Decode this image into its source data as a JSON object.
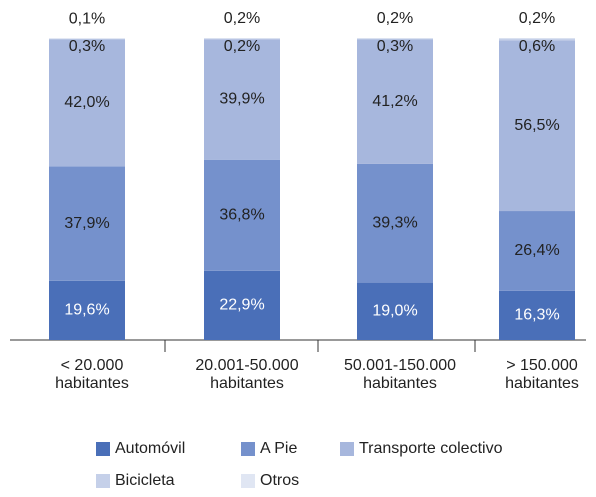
{
  "chart_data": {
    "type": "stacked-bar",
    "categories": [
      "< 20.000 habitantes",
      "20.001-50.000 habitantes",
      "50.001-150.000 habitantes",
      "> 150.000 habitantes"
    ],
    "series": [
      {
        "name": "Automóvil",
        "color": "#4a6fb8",
        "values": [
          19.6,
          22.9,
          19.0,
          16.3
        ],
        "value_labels": [
          "19,6%",
          "22,9%",
          "19,0%",
          "16,3%"
        ]
      },
      {
        "name": "A Pie",
        "color": "#7591cc",
        "values": [
          37.9,
          36.8,
          39.3,
          26.4
        ],
        "value_labels": [
          "37,9%",
          "36,8%",
          "39,3%",
          "26,4%"
        ]
      },
      {
        "name": "Transporte colectivo",
        "color": "#a7b7dd",
        "values": [
          42.0,
          39.9,
          41.2,
          56.5
        ],
        "value_labels": [
          "42,0%",
          "39,9%",
          "41,2%",
          "56,5%"
        ]
      },
      {
        "name": "Bicicleta",
        "color": "#c5d0e9",
        "values": [
          0.3,
          0.2,
          0.3,
          0.6
        ],
        "value_labels": [
          "0,3%",
          "0,2%",
          "0,3%",
          "0,6%"
        ]
      },
      {
        "name": "Otros",
        "color": "#e0e6f3",
        "values": [
          0.1,
          0.2,
          0.2,
          0.2
        ],
        "value_labels": [
          "0,1%",
          "0,2%",
          "0,2%",
          "0,2%"
        ]
      }
    ]
  }
}
